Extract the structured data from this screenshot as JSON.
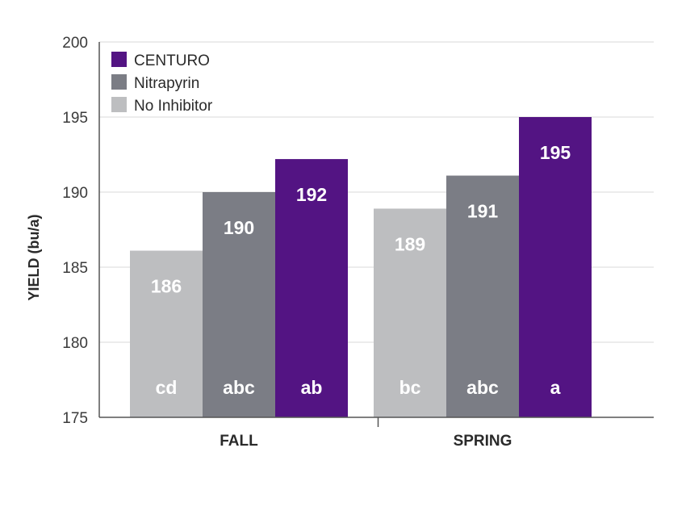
{
  "chart_data": {
    "type": "bar",
    "ylabel": "YIELD (bu/a)",
    "xlabel": "",
    "ylim": [
      175,
      200
    ],
    "yticks": [
      175,
      180,
      185,
      190,
      195,
      200
    ],
    "grid": true,
    "legend_position": "top-left",
    "categories": [
      "FALL",
      "SPRING"
    ],
    "series": [
      {
        "name": "No Inhibitor",
        "color": "#bdbec0",
        "values": [
          186,
          189
        ],
        "letters": [
          "cd",
          "bc"
        ]
      },
      {
        "name": "Nitrapyrin",
        "color": "#7b7d85",
        "values": [
          190,
          191
        ],
        "letters": [
          "abc",
          "abc"
        ]
      },
      {
        "name": "CENTURO",
        "color": "#531483",
        "values": [
          192,
          195
        ],
        "letters": [
          "ab",
          "a"
        ]
      }
    ],
    "bar_heights": [
      [
        186.1,
        188.9
      ],
      [
        190,
        191.1
      ],
      [
        192.2,
        195
      ]
    ],
    "legend_order": [
      "CENTURO",
      "Nitrapyrin",
      "No Inhibitor"
    ]
  }
}
